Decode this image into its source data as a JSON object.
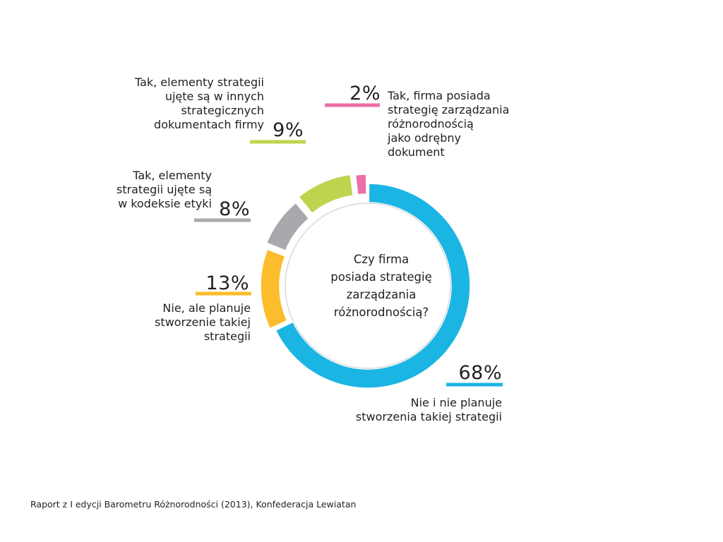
{
  "chart_data": {
    "type": "pie",
    "variant": "donut-exploded",
    "title": "Czy firma\nposiada strategię\nzarządzania\nróżnorodnością?",
    "slices": [
      {
        "label": "Nie i nie planuje\nstworzenia takiej strategii",
        "value": 68,
        "display": "68%",
        "color": "#1bb5e4"
      },
      {
        "label": "Nie, ale planuje\nstworzenie takiej\nstrategii",
        "value": 13,
        "display": "13%",
        "color": "#fcbd2c"
      },
      {
        "label": "Tak, elementy\nstrategii ujęte są\nw kodeksie etyki",
        "value": 8,
        "display": "8%",
        "color": "#a7a9ac"
      },
      {
        "label": "Tak, elementy strategii\nujęte są w innych\nstrategicznych\ndokumentach firmy",
        "value": 9,
        "display": "9%",
        "color": "#bdd54e"
      },
      {
        "label": "Tak, firma posiada\nstrategię zarządzania\nróżnorodnością\njako odrębny\ndokument",
        "value": 2,
        "display": "2%",
        "color": "#ec6fa8"
      }
    ],
    "source": "Raport z I edycji Barometru Różnorodności (2013), Konfederacja Lewiatan"
  }
}
